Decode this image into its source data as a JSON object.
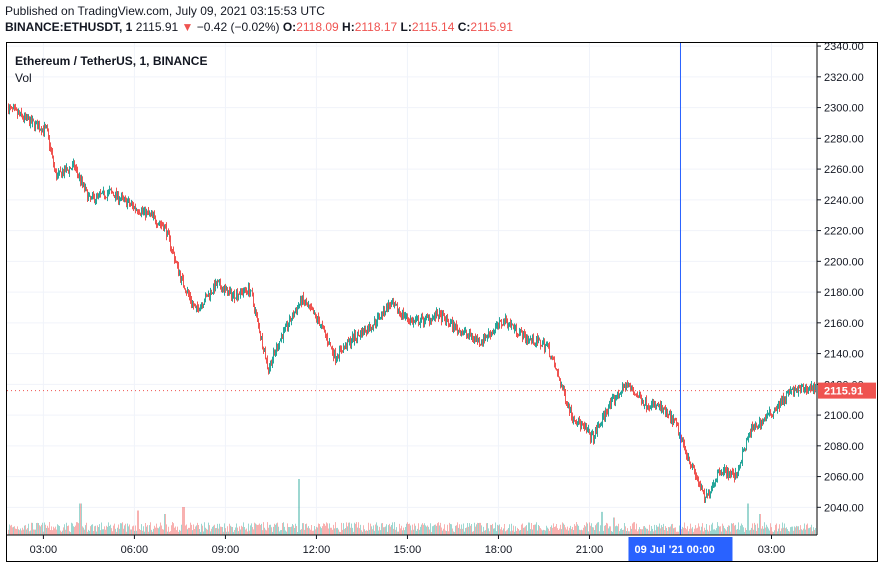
{
  "header": {
    "published": "Published on TradingView.com, July 09, 2021 03:15:53 UTC",
    "symbol": "BINANCE:ETHUSDT, 1",
    "last": "2115.91",
    "arrow": "▼",
    "change": "−0.42 (−0.02%)",
    "o_label": "O:",
    "o_value": "2118.09",
    "h_label": "H:",
    "h_value": "2118.17",
    "l_label": "L:",
    "l_value": "2115.14",
    "c_label": "C:",
    "c_value": "2115.91"
  },
  "colors": {
    "up": "#26a69a",
    "down": "#ef5350",
    "crosshair": "#2962ff",
    "grid": "#f0f3fa"
  },
  "chart_data": {
    "type": "candlestick",
    "title": "Ethereum / TetherUS, 1, BINANCE",
    "volume_label": "Vol",
    "last_price": 2115.91,
    "last_price_label": "2115.91",
    "ylim": [
      2022,
      2342
    ],
    "yticks": [
      2040,
      2060,
      2080,
      2100,
      2120,
      2140,
      2160,
      2180,
      2200,
      2220,
      2240,
      2260,
      2280,
      2300,
      2320,
      2340
    ],
    "ytick_labels": [
      "2040.00",
      "2060.00",
      "2080.00",
      "2100.00",
      "2120.00",
      "2140.00",
      "2160.00",
      "2180.00",
      "2200.00",
      "2220.00",
      "2240.00",
      "2260.00",
      "2280.00",
      "2300.00",
      "2320.00",
      "2340.00"
    ],
    "xlim": [
      1.8,
      28.5
    ],
    "xticks": [
      3,
      6,
      9,
      12,
      15,
      18,
      21,
      27
    ],
    "xtick_labels": [
      "03:00",
      "06:00",
      "09:00",
      "12:00",
      "15:00",
      "18:00",
      "21:00",
      "03:00"
    ],
    "crosshair_x": 24,
    "crosshair_label": "09 Jul '21   00:00",
    "price_path_hours": [
      1.8,
      2.6,
      3.1,
      3.4,
      4.0,
      4.5,
      5.2,
      6.0,
      6.5,
      7.0,
      7.5,
      8.0,
      8.7,
      9.2,
      9.8,
      10.4,
      10.8,
      11.5,
      12.1,
      12.6,
      13.2,
      13.8,
      14.4,
      15.2,
      16.0,
      16.7,
      17.4,
      18.2,
      18.9,
      19.6,
      20.4,
      21.1,
      21.6,
      22.2,
      22.8,
      23.3,
      23.8,
      24.2,
      24.8,
      25.3,
      25.8,
      26.3,
      26.9,
      27.6,
      28.4
    ],
    "price_path_values": [
      2300,
      2290,
      2285,
      2255,
      2262,
      2240,
      2245,
      2235,
      2230,
      2222,
      2190,
      2168,
      2185,
      2178,
      2182,
      2130,
      2150,
      2175,
      2160,
      2138,
      2150,
      2158,
      2172,
      2160,
      2165,
      2155,
      2148,
      2162,
      2150,
      2145,
      2100,
      2085,
      2105,
      2120,
      2108,
      2105,
      2095,
      2075,
      2045,
      2065,
      2060,
      2090,
      2100,
      2115,
      2118
    ],
    "volume_spikes_hours": [
      4.2,
      6.1,
      7.0,
      7.6,
      11.4,
      21.4,
      21.8,
      26.2,
      26.6
    ],
    "volume_spikes_rel": [
      0.45,
      0.35,
      0.3,
      0.4,
      0.8,
      0.33,
      0.25,
      0.45,
      0.3
    ]
  }
}
